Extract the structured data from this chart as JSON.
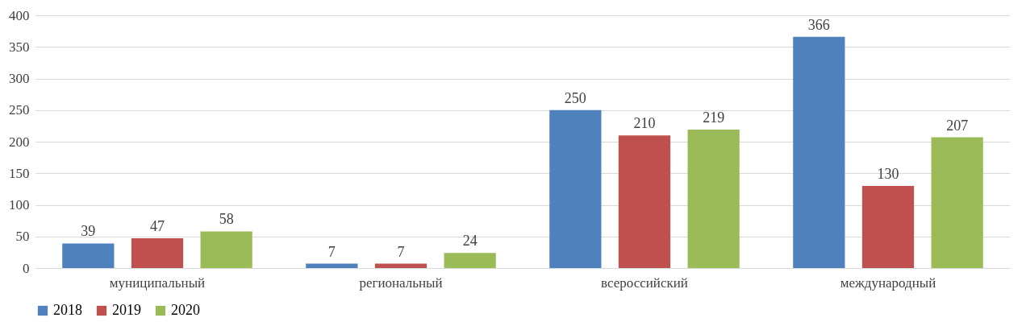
{
  "chart_data": {
    "type": "bar",
    "categories": [
      "муниципальный",
      "региональный",
      "всероссийский",
      "международный"
    ],
    "series": [
      {
        "name": "2018",
        "color": "#4f81bd",
        "values": [
          39,
          7,
          250,
          366
        ]
      },
      {
        "name": "2019",
        "color": "#c0504d",
        "values": [
          47,
          7,
          210,
          130
        ]
      },
      {
        "name": "2020",
        "color": "#9bbb59",
        "values": [
          58,
          24,
          219,
          207
        ]
      }
    ],
    "ylim": [
      0,
      400
    ],
    "yticks": [
      0,
      50,
      100,
      150,
      200,
      250,
      300,
      350,
      400
    ],
    "grid": "y",
    "legend": "bottom",
    "data_labels": true
  }
}
